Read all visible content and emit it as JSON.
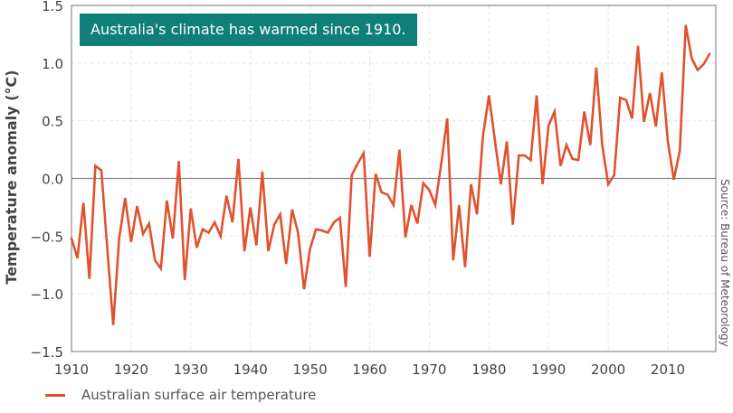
{
  "chart_data": {
    "type": "line",
    "title": "Australia's climate has warmed since 1910.",
    "xlabel": "",
    "ylabel": "Temperature anomaly (°C)",
    "source": "Source: Bureau of Meteorology",
    "xlim": [
      1910,
      2018
    ],
    "ylim": [
      -1.5,
      1.5
    ],
    "x_ticks": [
      1910,
      1920,
      1930,
      1940,
      1950,
      1960,
      1970,
      1980,
      1990,
      2000,
      2010
    ],
    "x_tick_labels": [
      "1910",
      "1920",
      "1930",
      "1940",
      "1950",
      "1960",
      "1970",
      "1980",
      "1990",
      "2000",
      "2010"
    ],
    "y_ticks": [
      1.5,
      1.0,
      0.5,
      0.0,
      -0.5,
      -1.0,
      -1.5
    ],
    "y_tick_labels": [
      "1.5",
      "1.0",
      "0.5",
      "0.0",
      "−0.5",
      "−1.0",
      "−1.5"
    ],
    "grid": true,
    "legend_position": "bottom-left",
    "series": [
      {
        "name": "Australian surface air temperature",
        "color": "#e0522e",
        "x": [
          1910,
          1911,
          1912,
          1913,
          1914,
          1915,
          1916,
          1917,
          1918,
          1919,
          1920,
          1921,
          1922,
          1923,
          1924,
          1925,
          1926,
          1927,
          1928,
          1929,
          1930,
          1931,
          1932,
          1933,
          1934,
          1935,
          1936,
          1937,
          1938,
          1939,
          1940,
          1941,
          1942,
          1943,
          1944,
          1945,
          1946,
          1947,
          1948,
          1949,
          1950,
          1951,
          1952,
          1953,
          1954,
          1955,
          1956,
          1957,
          1958,
          1959,
          1960,
          1961,
          1962,
          1963,
          1964,
          1965,
          1966,
          1967,
          1968,
          1969,
          1970,
          1971,
          1972,
          1973,
          1974,
          1975,
          1976,
          1977,
          1978,
          1979,
          1980,
          1981,
          1982,
          1983,
          1984,
          1985,
          1986,
          1987,
          1988,
          1989,
          1990,
          1991,
          1992,
          1993,
          1994,
          1995,
          1996,
          1997,
          1998,
          1999,
          2000,
          2001,
          2002,
          2003,
          2004,
          2005,
          2006,
          2007,
          2008,
          2009,
          2010,
          2011,
          2012,
          2013,
          2014,
          2015,
          2016,
          2017
        ],
        "values": [
          -0.52,
          -0.69,
          -0.21,
          -0.87,
          0.11,
          0.07,
          -0.6,
          -1.27,
          -0.52,
          -0.17,
          -0.55,
          -0.24,
          -0.48,
          -0.39,
          -0.71,
          -0.78,
          -0.19,
          -0.52,
          0.15,
          -0.88,
          -0.26,
          -0.6,
          -0.44,
          -0.47,
          -0.38,
          -0.5,
          -0.15,
          -0.38,
          0.17,
          -0.63,
          -0.25,
          -0.58,
          0.06,
          -0.63,
          -0.4,
          -0.31,
          -0.74,
          -0.27,
          -0.47,
          -0.96,
          -0.61,
          -0.44,
          -0.45,
          -0.47,
          -0.38,
          -0.34,
          -0.94,
          0.03,
          0.13,
          0.22,
          -0.68,
          0.04,
          -0.12,
          -0.14,
          -0.23,
          0.25,
          -0.51,
          -0.23,
          -0.39,
          -0.04,
          -0.1,
          -0.23,
          0.13,
          0.52,
          -0.71,
          -0.23,
          -0.77,
          -0.05,
          -0.31,
          0.37,
          0.72,
          0.33,
          -0.05,
          0.32,
          -0.4,
          0.2,
          0.2,
          0.16,
          0.72,
          -0.05,
          0.46,
          0.58,
          0.11,
          0.29,
          0.17,
          0.16,
          0.58,
          0.29,
          0.96,
          0.29,
          -0.05,
          0.03,
          0.7,
          0.68,
          0.52,
          1.15,
          0.49,
          0.74,
          0.45,
          0.92,
          0.32,
          -0.01,
          0.24,
          1.33,
          1.04,
          0.94,
          0.99,
          1.08
        ]
      }
    ]
  }
}
